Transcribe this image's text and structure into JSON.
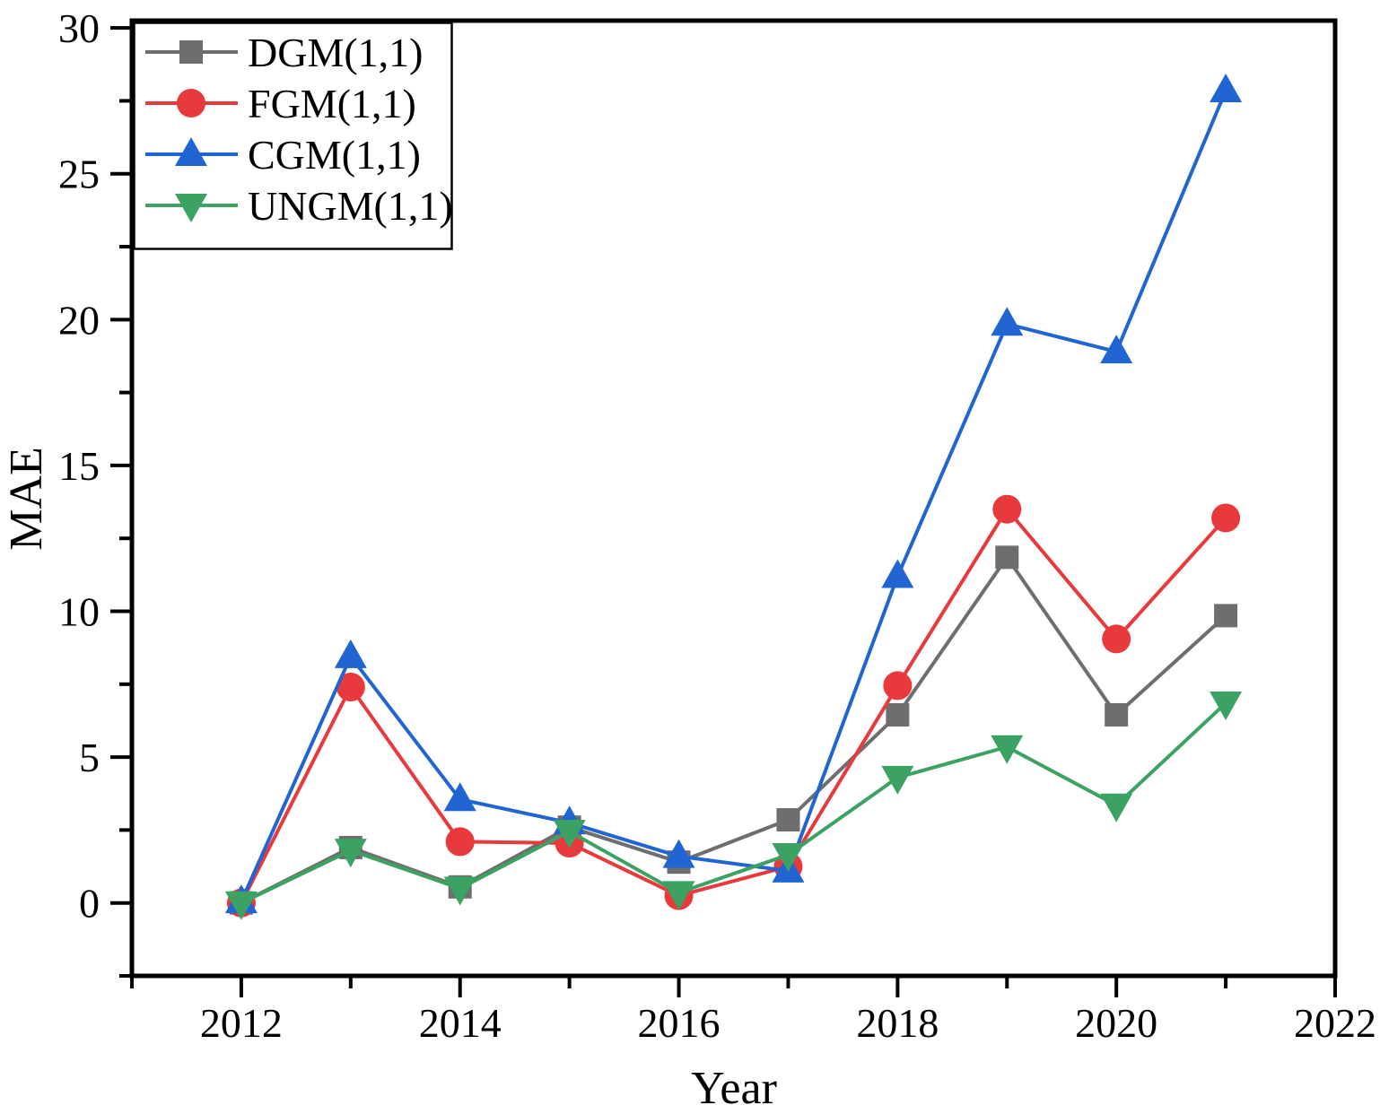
{
  "chart_data": {
    "type": "line",
    "title": "",
    "xlabel": "Year",
    "ylabel": "MAE",
    "grid": "off",
    "legend_position": "top-left",
    "axis_color": "#000000",
    "background_color": "#ffffff",
    "xlim": [
      2011,
      2022
    ],
    "ylim": [
      -2.5,
      30.25
    ],
    "x_major_ticks": [
      2012,
      2014,
      2016,
      2018,
      2020,
      2022
    ],
    "x_minor_ticks": [
      2011,
      2013,
      2015,
      2017,
      2019,
      2021
    ],
    "y_major_ticks": [
      0,
      5,
      10,
      15,
      20,
      25,
      30
    ],
    "y_minor_ticks": [
      -2.5,
      2.5,
      7.5,
      12.5,
      17.5,
      22.5,
      27.5
    ],
    "x": [
      2012,
      2013,
      2014,
      2015,
      2016,
      2017,
      2018,
      2019,
      2020,
      2021
    ],
    "series": [
      {
        "name": "DGM(1,1)",
        "color": "#6e6e6e",
        "marker": "square",
        "values": [
          0.0,
          1.9,
          0.55,
          2.6,
          1.4,
          2.85,
          6.45,
          11.85,
          6.45,
          9.85
        ]
      },
      {
        "name": "FGM(1,1)",
        "color": "#e8393c",
        "marker": "circle",
        "values": [
          0.0,
          7.4,
          2.1,
          2.05,
          0.25,
          1.25,
          7.45,
          13.5,
          9.05,
          13.2
        ]
      },
      {
        "name": "CGM(1,1)",
        "color": "#2065d1",
        "marker": "triangle-up",
        "values": [
          0.05,
          8.45,
          3.55,
          2.75,
          1.6,
          1.1,
          11.2,
          19.85,
          18.9,
          27.85
        ]
      },
      {
        "name": "UNGM(1,1)",
        "color": "#3ca263",
        "marker": "triangle-down",
        "values": [
          0.0,
          1.8,
          0.5,
          2.45,
          0.35,
          1.65,
          4.3,
          5.35,
          3.35,
          6.85
        ]
      }
    ]
  }
}
